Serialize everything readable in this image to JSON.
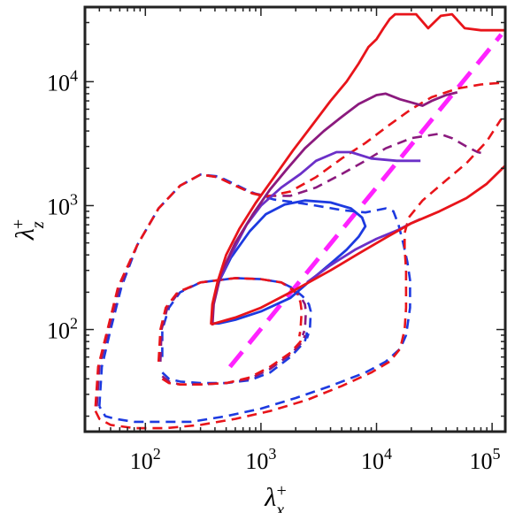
{
  "chart_data": {
    "type": "line",
    "title": "",
    "xlabel": {
      "base": "λ",
      "sub": "x",
      "sup": "+"
    },
    "ylabel": {
      "base": "λ",
      "sub": "z",
      "sup": "+"
    },
    "xscale": "log",
    "yscale": "log",
    "xlim": [
      30,
      130000
    ],
    "ylim": [
      15,
      40000
    ],
    "xticks": [
      {
        "value": 100,
        "base": "10",
        "exp": "2"
      },
      {
        "value": 1000,
        "base": "10",
        "exp": "3"
      },
      {
        "value": 10000,
        "base": "10",
        "exp": "4"
      },
      {
        "value": 100000,
        "base": "10",
        "exp": "5"
      }
    ],
    "yticks": [
      {
        "value": 100,
        "base": "10",
        "exp": "2"
      },
      {
        "value": 1000,
        "base": "10",
        "exp": "3"
      },
      {
        "value": 10000,
        "base": "10",
        "exp": "4"
      }
    ],
    "grid": false,
    "legend": "none",
    "colors": {
      "red": "#e8141a",
      "purple": "#8b1a7e",
      "violet": "#6b30c8",
      "blue": "#1d3ae0",
      "magenta": "#ff22ff"
    },
    "series": [
      {
        "color": "#ff22ff",
        "style": "dashed-thick",
        "points": [
          [
            540,
            50
          ],
          [
            120000,
            24000
          ]
        ]
      },
      {
        "color": "#1d3ae0",
        "style": "dashed",
        "points": [
          [
            40,
            24
          ],
          [
            42,
            50
          ],
          [
            50,
            100
          ],
          [
            62,
            220
          ],
          [
            85,
            480
          ],
          [
            130,
            950
          ],
          [
            200,
            1450
          ],
          [
            300,
            1780
          ],
          [
            430,
            1720
          ],
          [
            600,
            1480
          ],
          [
            800,
            1300
          ],
          [
            1000,
            1200
          ],
          [
            1300,
            1120
          ],
          [
            2000,
            1060
          ],
          [
            3000,
            1000
          ],
          [
            5000,
            920
          ],
          [
            8000,
            880
          ],
          [
            12000,
            950
          ],
          [
            14000,
            900
          ],
          [
            15500,
            700
          ],
          [
            17000,
            500
          ],
          [
            18500,
            350
          ],
          [
            19500,
            250
          ],
          [
            19500,
            150
          ],
          [
            18000,
            90
          ],
          [
            16000,
            70
          ],
          [
            12000,
            55
          ],
          [
            8000,
            45
          ],
          [
            4000,
            35
          ],
          [
            2000,
            28
          ],
          [
            1000,
            23
          ],
          [
            500,
            20
          ],
          [
            250,
            18
          ],
          [
            120,
            18
          ],
          [
            80,
            18
          ],
          [
            55,
            19
          ],
          [
            45,
            20
          ],
          [
            40,
            24
          ]
        ]
      },
      {
        "color": "#8b1a7e",
        "style": "dashed",
        "points": [
          [
            38,
            24
          ],
          [
            40,
            50
          ],
          [
            48,
            100
          ],
          [
            60,
            220
          ],
          [
            85,
            480
          ],
          [
            130,
            950
          ],
          [
            200,
            1450
          ],
          [
            300,
            1780
          ],
          [
            420,
            1700
          ],
          [
            600,
            1450
          ],
          [
            850,
            1260
          ],
          [
            1100,
            1200
          ],
          [
            1800,
            1200
          ],
          [
            3000,
            1400
          ],
          [
            5000,
            1800
          ],
          [
            8000,
            2300
          ],
          [
            12000,
            2900
          ],
          [
            20000,
            3500
          ],
          [
            35000,
            3800
          ],
          [
            45000,
            3500
          ],
          [
            60000,
            3000
          ],
          [
            75000,
            2700
          ],
          [
            90000,
            2600
          ]
        ]
      },
      {
        "color": "#e8141a",
        "style": "dashed",
        "points": [
          [
            37,
            24
          ],
          [
            39,
            50
          ],
          [
            47,
            100
          ],
          [
            58,
            220
          ],
          [
            85,
            480
          ],
          [
            130,
            950
          ],
          [
            200,
            1450
          ],
          [
            300,
            1780
          ],
          [
            420,
            1700
          ],
          [
            600,
            1450
          ],
          [
            850,
            1250
          ],
          [
            1100,
            1180
          ],
          [
            1800,
            1300
          ],
          [
            3000,
            1700
          ],
          [
            5000,
            2400
          ],
          [
            8000,
            3200
          ],
          [
            13000,
            4500
          ],
          [
            20000,
            6000
          ],
          [
            30000,
            7500
          ],
          [
            50000,
            8800
          ],
          [
            80000,
            9500
          ],
          [
            120000,
            9800
          ]
        ]
      },
      {
        "color": "#e8141a",
        "style": "dashed",
        "points": [
          [
            37,
            22
          ],
          [
            40,
            19
          ],
          [
            50,
            17
          ],
          [
            80,
            16
          ],
          [
            150,
            16
          ],
          [
            300,
            17
          ],
          [
            600,
            19
          ],
          [
            1200,
            22
          ],
          [
            2500,
            27
          ],
          [
            5000,
            35
          ],
          [
            9000,
            45
          ],
          [
            13000,
            55
          ],
          [
            16000,
            70
          ],
          [
            17500,
            100
          ],
          [
            18000,
            150
          ],
          [
            18000,
            300
          ],
          [
            17500,
            450
          ],
          [
            17500,
            600
          ],
          [
            19000,
            800
          ],
          [
            25000,
            1100
          ],
          [
            40000,
            1600
          ],
          [
            60000,
            2200
          ],
          [
            90000,
            3300
          ],
          [
            120000,
            5000
          ]
        ]
      },
      {
        "color": "#1d3ae0",
        "style": "dashed",
        "points": [
          [
            140,
            60
          ],
          [
            140,
            100
          ],
          [
            160,
            150
          ],
          [
            200,
            200
          ],
          [
            300,
            240
          ],
          [
            600,
            260
          ],
          [
            1000,
            255
          ],
          [
            1500,
            240
          ],
          [
            1900,
            215
          ],
          [
            2300,
            185
          ],
          [
            2600,
            160
          ],
          [
            2700,
            140
          ],
          [
            2650,
            100
          ],
          [
            2500,
            85
          ]
        ]
      },
      {
        "color": "#8b1a7e",
        "style": "dashed",
        "points": [
          [
            135,
            55
          ],
          [
            138,
            100
          ],
          [
            155,
            150
          ],
          [
            195,
            200
          ],
          [
            300,
            240
          ],
          [
            600,
            260
          ],
          [
            1000,
            255
          ],
          [
            1500,
            240
          ],
          [
            1850,
            215
          ],
          [
            2200,
            185
          ],
          [
            2400,
            160
          ],
          [
            2450,
            140
          ],
          [
            2400,
            100
          ],
          [
            2300,
            90
          ]
        ]
      },
      {
        "color": "#e8141a",
        "style": "dashed",
        "points": [
          [
            130,
            55
          ],
          [
            135,
            100
          ],
          [
            150,
            150
          ],
          [
            190,
            200
          ],
          [
            300,
            240
          ],
          [
            600,
            260
          ],
          [
            1000,
            255
          ],
          [
            1500,
            240
          ],
          [
            1800,
            215
          ],
          [
            2100,
            190
          ],
          [
            2200,
            165
          ],
          [
            2250,
            140
          ],
          [
            2200,
            100
          ],
          [
            2150,
            88
          ]
        ]
      },
      {
        "color": "#1d3ae0",
        "style": "dashed",
        "points": [
          [
            140,
            45
          ],
          [
            160,
            40
          ],
          [
            200,
            38
          ],
          [
            300,
            37
          ],
          [
            500,
            37
          ],
          [
            800,
            39
          ],
          [
            1200,
            45
          ],
          [
            1800,
            60
          ],
          [
            2400,
            80
          ],
          [
            2500,
            95
          ]
        ]
      },
      {
        "color": "#8b1a7e",
        "style": "dashed",
        "points": [
          [
            140,
            42
          ],
          [
            160,
            38
          ],
          [
            200,
            36
          ],
          [
            300,
            36
          ],
          [
            500,
            37
          ],
          [
            800,
            40
          ],
          [
            1200,
            48
          ],
          [
            1800,
            63
          ],
          [
            2300,
            80
          ],
          [
            2400,
            90
          ]
        ]
      },
      {
        "color": "#e8141a",
        "style": "dashed",
        "points": [
          [
            140,
            40
          ],
          [
            160,
            37
          ],
          [
            200,
            36
          ],
          [
            300,
            36
          ],
          [
            500,
            37
          ],
          [
            800,
            41
          ],
          [
            1200,
            50
          ],
          [
            1800,
            65
          ],
          [
            2200,
            80
          ],
          [
            2300,
            90
          ]
        ]
      },
      {
        "color": "#1d3ae0",
        "style": "solid",
        "points": [
          [
            380,
            112
          ],
          [
            380,
            150
          ],
          [
            420,
            230
          ],
          [
            550,
            380
          ],
          [
            800,
            620
          ],
          [
            1100,
            850
          ],
          [
            1600,
            1020
          ],
          [
            2400,
            1100
          ],
          [
            4000,
            1060
          ],
          [
            6000,
            950
          ],
          [
            7500,
            800
          ],
          [
            8000,
            680
          ],
          [
            7000,
            560
          ],
          [
            5500,
            440
          ],
          [
            4000,
            340
          ],
          [
            2700,
            250
          ],
          [
            1800,
            180
          ],
          [
            1000,
            140
          ],
          [
            600,
            120
          ],
          [
            430,
            112
          ],
          [
            380,
            112
          ]
        ]
      },
      {
        "color": "#6b30c8",
        "style": "solid",
        "points": [
          [
            380,
            110
          ],
          [
            380,
            150
          ],
          [
            420,
            230
          ],
          [
            550,
            400
          ],
          [
            750,
            700
          ],
          [
            1000,
            1000
          ],
          [
            1500,
            1400
          ],
          [
            2200,
            1800
          ],
          [
            3000,
            2300
          ],
          [
            4500,
            2700
          ],
          [
            6000,
            2700
          ],
          [
            9000,
            2400
          ],
          [
            15000,
            2300
          ],
          [
            20000,
            2300
          ],
          [
            24000,
            2300
          ]
        ]
      },
      {
        "color": "#6b30c8",
        "style": "solid",
        "points": [
          [
            2500,
            240
          ],
          [
            4000,
            330
          ],
          [
            6500,
            440
          ],
          [
            10000,
            540
          ],
          [
            15000,
            630
          ],
          [
            20000,
            720
          ],
          [
            24000,
            780
          ]
        ]
      },
      {
        "color": "#8b1a7e",
        "style": "solid",
        "points": [
          [
            380,
            108
          ],
          [
            390,
            160
          ],
          [
            450,
            280
          ],
          [
            600,
            500
          ],
          [
            850,
            850
          ],
          [
            1200,
            1350
          ],
          [
            1700,
            2000
          ],
          [
            2400,
            2900
          ],
          [
            3500,
            4000
          ],
          [
            5000,
            5200
          ],
          [
            7000,
            6600
          ],
          [
            10000,
            7800
          ],
          [
            12000,
            8000
          ],
          [
            16000,
            7200
          ],
          [
            20000,
            6800
          ],
          [
            25000,
            6400
          ],
          [
            30000,
            7000
          ],
          [
            40000,
            7800
          ],
          [
            50000,
            8200
          ]
        ]
      },
      {
        "color": "#e8141a",
        "style": "solid",
        "points": [
          [
            370,
            110
          ],
          [
            380,
            160
          ],
          [
            420,
            240
          ],
          [
            500,
            400
          ],
          [
            650,
            650
          ],
          [
            900,
            1050
          ],
          [
            1300,
            1700
          ],
          [
            1900,
            2800
          ],
          [
            2800,
            4500
          ],
          [
            4000,
            7000
          ],
          [
            5500,
            10000
          ],
          [
            7000,
            14000
          ],
          [
            8500,
            19000
          ],
          [
            10000,
            22000
          ],
          [
            11500,
            27000
          ],
          [
            13000,
            32000
          ],
          [
            14500,
            35000
          ],
          [
            22000,
            35000
          ],
          [
            28000,
            27000
          ],
          [
            36000,
            34000
          ],
          [
            45000,
            35000
          ],
          [
            58000,
            27000
          ],
          [
            80000,
            26000
          ],
          [
            130000,
            26000
          ]
        ]
      },
      {
        "color": "#e8141a",
        "style": "solid",
        "points": [
          [
            370,
            110
          ],
          [
            600,
            125
          ],
          [
            1000,
            150
          ],
          [
            2000,
            210
          ],
          [
            4000,
            300
          ],
          [
            7000,
            410
          ],
          [
            12000,
            550
          ],
          [
            20000,
            720
          ],
          [
            35000,
            900
          ],
          [
            60000,
            1150
          ],
          [
            90000,
            1500
          ],
          [
            130000,
            2100
          ]
        ]
      }
    ]
  }
}
